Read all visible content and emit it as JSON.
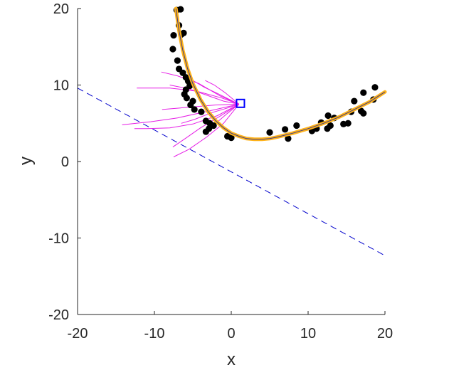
{
  "chart_data": {
    "type": "scatter",
    "title": "",
    "xlabel": "x",
    "ylabel": "y",
    "xlim": [
      -20,
      20
    ],
    "ylim": [
      -20,
      20
    ],
    "xticks": [
      -20,
      -10,
      0,
      10,
      20
    ],
    "yticks": [
      -20,
      -10,
      0,
      10,
      20
    ],
    "xtick_labels": [
      "-20",
      "-10",
      "0",
      "10",
      "20"
    ],
    "ytick_labels": [
      "-20",
      "-10",
      "0",
      "10",
      "20"
    ],
    "grid": false,
    "box": false,
    "colors": {
      "points": "#000000",
      "fit_curve": "#ffb31a",
      "fit_curve_inner": "#3a3a8c",
      "dashed_line": "#0000cc",
      "paths": "#e61ee6",
      "marker": "#0000ff",
      "axis": "#262626"
    },
    "points": [
      [
        -7.1,
        19.8
      ],
      [
        -6.6,
        19.9
      ],
      [
        -6.8,
        17.8
      ],
      [
        -6.2,
        16.8
      ],
      [
        -6.5,
        16.6
      ],
      [
        -7.5,
        16.5
      ],
      [
        -7.6,
        14.7
      ],
      [
        -7.0,
        13.2
      ],
      [
        -6.8,
        12.1
      ],
      [
        -6.3,
        11.6
      ],
      [
        -5.9,
        11.0
      ],
      [
        -5.6,
        10.5
      ],
      [
        -5.4,
        9.9
      ],
      [
        -5.9,
        9.4
      ],
      [
        -6.1,
        8.8
      ],
      [
        -5.8,
        8.3
      ],
      [
        -5.0,
        7.9
      ],
      [
        -5.3,
        7.4
      ],
      [
        -4.8,
        6.8
      ],
      [
        -3.9,
        6.5
      ],
      [
        -3.3,
        5.3
      ],
      [
        -2.8,
        5.0
      ],
      [
        -2.3,
        4.7
      ],
      [
        -2.9,
        4.3
      ],
      [
        -3.3,
        3.9
      ],
      [
        -0.5,
        3.3
      ],
      [
        0.0,
        3.1
      ],
      [
        5.0,
        3.8
      ],
      [
        7.0,
        4.2
      ],
      [
        7.4,
        3.0
      ],
      [
        8.5,
        4.7
      ],
      [
        10.5,
        4.0
      ],
      [
        11.1,
        4.3
      ],
      [
        11.7,
        5.1
      ],
      [
        12.5,
        4.3
      ],
      [
        12.9,
        4.7
      ],
      [
        12.6,
        6.0
      ],
      [
        13.4,
        5.7
      ],
      [
        14.6,
        4.9
      ],
      [
        15.2,
        5.0
      ],
      [
        15.6,
        6.5
      ],
      [
        16.0,
        7.9
      ],
      [
        16.9,
        6.6
      ],
      [
        17.2,
        6.3
      ],
      [
        17.2,
        9.0
      ],
      [
        18.5,
        8.1
      ],
      [
        18.7,
        9.7
      ]
    ],
    "fit_curve": [
      [
        -7.2,
        20.0
      ],
      [
        -6.8,
        17.1
      ],
      [
        -6.3,
        14.5
      ],
      [
        -5.7,
        12.2
      ],
      [
        -5.0,
        10.2
      ],
      [
        -4.0,
        8.1
      ],
      [
        -3.0,
        6.5
      ],
      [
        -2.0,
        5.3
      ],
      [
        -1.0,
        4.4
      ],
      [
        0.0,
        3.7
      ],
      [
        1.0,
        3.3
      ],
      [
        2.0,
        3.0
      ],
      [
        3.0,
        2.9
      ],
      [
        4.0,
        2.9
      ],
      [
        5.0,
        3.0
      ],
      [
        6.0,
        3.2
      ],
      [
        8.0,
        3.7
      ],
      [
        10.0,
        4.3
      ],
      [
        12.0,
        5.0
      ],
      [
        14.0,
        5.8
      ],
      [
        16.0,
        6.8
      ],
      [
        18.0,
        7.8
      ],
      [
        20.0,
        9.1
      ]
    ],
    "dashed_line": [
      [
        -20,
        9.6
      ],
      [
        20,
        -12.3
      ]
    ],
    "marker": [
      1.2,
      7.6
    ],
    "paths": [
      [
        [
          1.0,
          7.5
        ],
        [
          -1.2,
          8.3
        ],
        [
          -4.5,
          9.2
        ],
        [
          -8.0,
          9.6
        ],
        [
          -12.3,
          9.6
        ]
      ],
      [
        [
          1.0,
          7.5
        ],
        [
          -1.5,
          8.6
        ],
        [
          -4.2,
          10.2
        ],
        [
          -7.0,
          11.2
        ],
        [
          -9.1,
          11.7
        ]
      ],
      [
        [
          1.0,
          7.5
        ],
        [
          -0.8,
          9.0
        ],
        [
          -2.2,
          10.0
        ],
        [
          -3.4,
          10.6
        ]
      ],
      [
        [
          1.0,
          7.5
        ],
        [
          -2.0,
          7.4
        ],
        [
          -5.5,
          7.1
        ],
        [
          -9.0,
          6.8
        ]
      ],
      [
        [
          1.0,
          7.5
        ],
        [
          -2.5,
          6.7
        ],
        [
          -7.0,
          5.7
        ],
        [
          -10.5,
          5.2
        ],
        [
          -14.2,
          4.8
        ]
      ],
      [
        [
          1.0,
          7.5
        ],
        [
          -1.8,
          6.0
        ],
        [
          -5.0,
          4.9
        ],
        [
          -8.0,
          4.4
        ],
        [
          -11.0,
          4.3
        ],
        [
          -12.6,
          4.3
        ]
      ],
      [
        [
          1.0,
          7.5
        ],
        [
          -1.5,
          5.9
        ],
        [
          -4.0,
          4.4
        ],
        [
          -6.0,
          3.0
        ],
        [
          -7.6,
          1.9
        ]
      ],
      [
        [
          1.0,
          7.5
        ],
        [
          -1.0,
          5.0
        ],
        [
          -3.2,
          3.2
        ],
        [
          -5.5,
          1.6
        ],
        [
          -7.5,
          0.6
        ]
      ],
      [
        [
          1.0,
          7.5
        ],
        [
          -0.5,
          6.3
        ],
        [
          -2.0,
          5.0
        ],
        [
          -3.0,
          4.1
        ]
      ],
      [
        [
          1.0,
          7.5
        ],
        [
          -1.0,
          7.9
        ],
        [
          -3.0,
          8.6
        ],
        [
          -5.5,
          9.5
        ],
        [
          -8.0,
          10.0
        ]
      ],
      [
        [
          1.0,
          7.5
        ],
        [
          -0.5,
          7.0
        ],
        [
          -2.5,
          6.4
        ],
        [
          -4.8,
          5.5
        ],
        [
          -6.5,
          5.0
        ]
      ],
      [
        [
          1.0,
          7.5
        ],
        [
          -0.2,
          8.1
        ],
        [
          -1.8,
          8.9
        ],
        [
          -3.5,
          9.7
        ],
        [
          -5.0,
          10.6
        ]
      ]
    ]
  }
}
